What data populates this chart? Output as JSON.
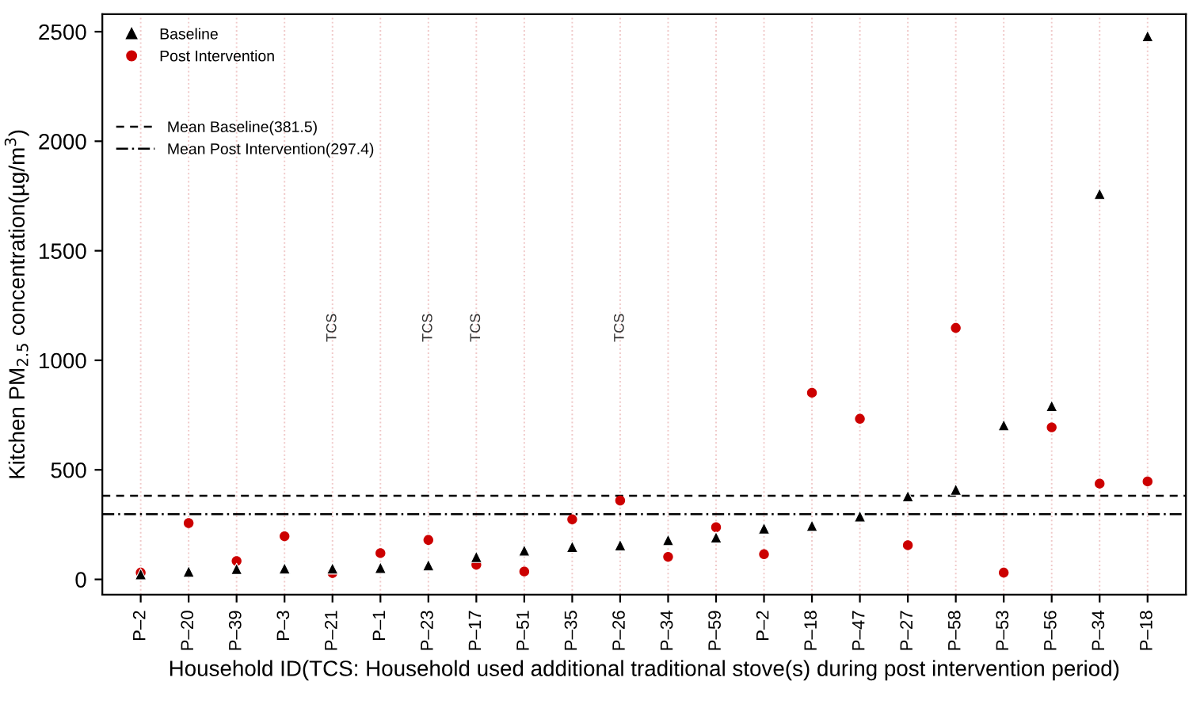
{
  "chart_data": {
    "type": "scatter",
    "xlabel": "Household ID(TCS: Household used additional traditional stove(s) during post intervention period)",
    "ylabel": "Kitchen PM$_{2.5}$ concentration(µg/m$^{3}$)",
    "categories": [
      "P–2",
      "P–20",
      "P–39",
      "P–3",
      "P–21",
      "P–1",
      "P–23",
      "P–17",
      "P–51",
      "P–35",
      "P–26",
      "P–34",
      "P–59",
      "P–2",
      "P–18",
      "P–47",
      "P–27",
      "P–58",
      "P–53",
      "P–56",
      "P–34",
      "P–18"
    ],
    "series": [
      {
        "name": "Baseline",
        "color": "#000000",
        "marker": "triangle",
        "values": [
          24,
          36,
          48,
          50,
          50,
          53,
          65,
          103,
          132,
          149,
          156,
          180,
          192,
          233,
          245,
          288,
          380,
          410,
          704,
          792,
          1760,
          2480
        ]
      },
      {
        "name": "Post Intervention",
        "color": "#cc0000",
        "marker": "circle",
        "values": [
          31,
          257,
          84,
          197,
          29,
          120,
          180,
          67,
          36,
          274,
          360,
          103,
          238,
          115,
          852,
          733,
          156,
          1148,
          31,
          694,
          437,
          447
        ]
      }
    ],
    "ylim": [
      -70,
      2580
    ],
    "yticks": [
      0,
      500,
      1000,
      1500,
      2000,
      2500
    ],
    "grid": "x",
    "legend": "top left",
    "ref_lines": [
      {
        "axis": "y",
        "value": 381.5,
        "label": "Mean Baseline(381.5)",
        "line_style": "dashed",
        "color": "#000000"
      },
      {
        "axis": "y",
        "value": 297.4,
        "label": "Mean Post Intervention(297.4)",
        "line_style": "dashdot",
        "color": "#000000"
      }
    ],
    "annotations": [
      "TCS",
      "TCS",
      "TCS",
      "TCS"
    ]
  }
}
